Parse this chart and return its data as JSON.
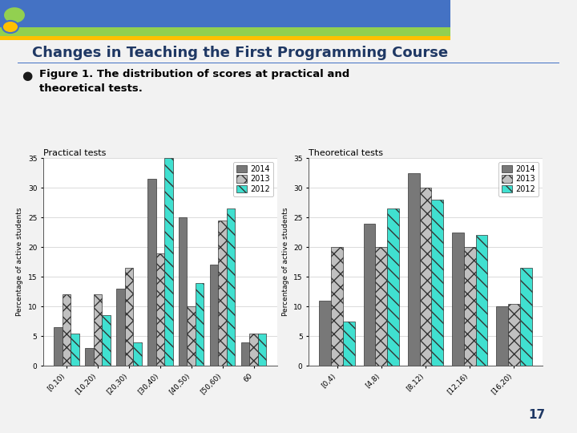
{
  "title": "Changes in Teaching the First Programming Course",
  "subtitle_line1": "Figure 1. The distribution of scores at practical and",
  "subtitle_line2": "theoretical tests.",
  "page_number": "17",
  "practical": {
    "title": "Practical tests",
    "categories": [
      "[0,10)",
      "[10,20)",
      "[20,30)",
      "[30,40)",
      "[40,50)",
      "[50,60)",
      "60"
    ],
    "data_2014": [
      6.5,
      3.0,
      13.0,
      31.5,
      25.0,
      17.0,
      4.0
    ],
    "data_2013": [
      12.0,
      12.0,
      16.5,
      19.0,
      10.0,
      24.5,
      5.5
    ],
    "data_2012": [
      5.5,
      8.5,
      4.0,
      35.0,
      14.0,
      26.5,
      5.5
    ],
    "ylim": [
      0,
      35
    ],
    "yticks": [
      0,
      5,
      10,
      15,
      20,
      25,
      30,
      35
    ],
    "ylabel": "Percentage of active students"
  },
  "theoretical": {
    "title": "Theoretical tests",
    "categories": [
      "[0,4)",
      "[4,8)",
      "[8,12)",
      "[12,16)",
      "[16,20)"
    ],
    "data_2014": [
      11.0,
      24.0,
      32.5,
      22.5,
      10.0
    ],
    "data_2013": [
      20.0,
      20.0,
      30.0,
      20.0,
      10.5
    ],
    "data_2012": [
      7.5,
      26.5,
      28.0,
      22.0,
      16.5
    ],
    "ylim": [
      0,
      35
    ],
    "yticks": [
      0,
      5,
      10,
      15,
      20,
      25,
      30,
      35
    ],
    "ylabel": "Percentage of active students"
  },
  "color_2014": "#787878",
  "color_2013": "#c0c0c0",
  "color_2012": "#40e0d0",
  "header_blue": "#4472c4",
  "header_green": "#92d050",
  "header_yellow": "#ffc000",
  "title_color": "#1f3864",
  "subtitle_color": "#000000",
  "background_color": "#f2f2f2",
  "slide_bg": "#ffffff"
}
